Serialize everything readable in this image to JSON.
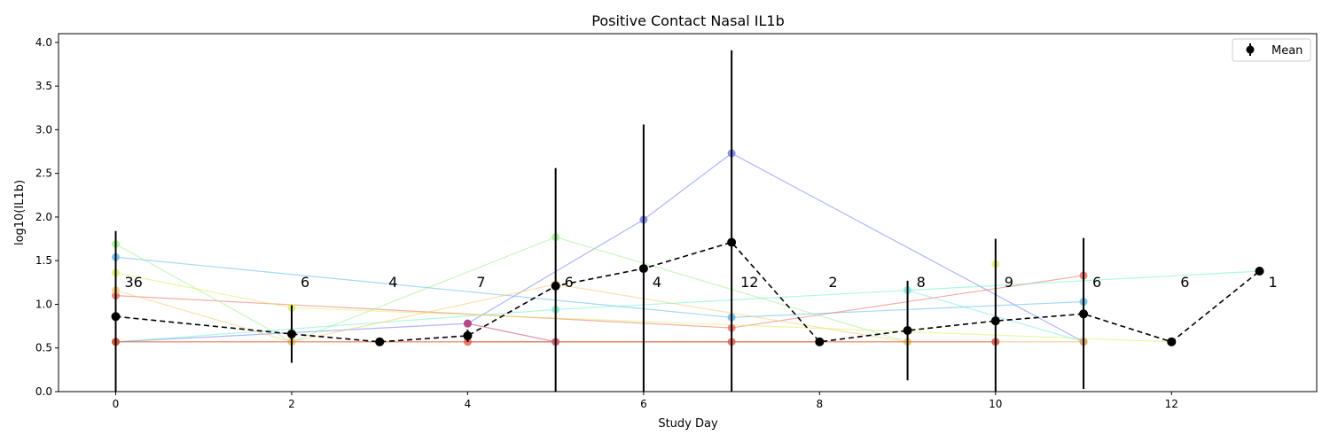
{
  "chart_data": {
    "type": "line",
    "title": "Positive Contact Nasal IL1b",
    "xlabel": "Study Day",
    "ylabel": "log10(IL1b)",
    "xlim": [
      -0.65,
      13.65
    ],
    "ylim": [
      0.0,
      4.1
    ],
    "xticks": [
      0,
      2,
      4,
      6,
      8,
      10,
      12
    ],
    "xtick_labels": [
      "0",
      "2",
      "4",
      "6",
      "8",
      "10",
      "12"
    ],
    "yticks": [
      0.0,
      0.5,
      1.0,
      1.5,
      2.0,
      2.5,
      3.0,
      3.5,
      4.0
    ],
    "ytick_labels": [
      "0.0",
      "0.5",
      "1.0",
      "1.5",
      "2.0",
      "2.5",
      "3.0",
      "3.5",
      "4.0"
    ],
    "grid": false,
    "legend": {
      "position": "top-right",
      "entries": [
        "Mean"
      ]
    },
    "mean_series": {
      "name": "Mean",
      "color": "#000000",
      "x": [
        0,
        2,
        3,
        4,
        5,
        6,
        7,
        8,
        9,
        10,
        11,
        12,
        13
      ],
      "y": [
        0.86,
        0.66,
        0.57,
        0.64,
        1.21,
        1.41,
        1.71,
        0.57,
        0.7,
        0.81,
        0.89,
        0.57,
        1.38
      ],
      "err_low": [
        0.0,
        0.33,
        0.57,
        0.57,
        0.0,
        0.0,
        0.0,
        0.57,
        0.13,
        0.0,
        0.03,
        0.57,
        1.38
      ],
      "err_high": [
        1.84,
        0.99,
        0.57,
        0.71,
        2.56,
        3.06,
        3.91,
        0.57,
        1.27,
        1.75,
        1.76,
        0.57,
        1.38
      ]
    },
    "counts": [
      {
        "x": 0,
        "label": "36"
      },
      {
        "x": 2,
        "label": "6"
      },
      {
        "x": 3,
        "label": "4"
      },
      {
        "x": 4,
        "label": "7"
      },
      {
        "x": 5,
        "label": "6"
      },
      {
        "x": 6,
        "label": "4"
      },
      {
        "x": 7,
        "label": "12"
      },
      {
        "x": 8,
        "label": "2"
      },
      {
        "x": 9,
        "label": "8"
      },
      {
        "x": 10,
        "label": "9"
      },
      {
        "x": 11,
        "label": "6"
      },
      {
        "x": 12,
        "label": "6"
      },
      {
        "x": 13,
        "label": "1"
      }
    ],
    "count_label_y": 1.26,
    "subjects": [
      {
        "color": "#6b7bf0",
        "x": [
          0,
          4,
          6,
          7,
          11
        ],
        "y": [
          0.57,
          0.78,
          1.97,
          2.73,
          0.57
        ]
      },
      {
        "color": "#5db8f0",
        "x": [
          0,
          7,
          11
        ],
        "y": [
          1.54,
          0.85,
          1.03
        ]
      },
      {
        "color": "#eb6a5c",
        "x": [
          0,
          7,
          11
        ],
        "y": [
          1.1,
          0.73,
          1.33
        ]
      },
      {
        "color": "#6ef0c8",
        "x": [
          0,
          5,
          13
        ],
        "y": [
          0.57,
          0.94,
          1.38
        ]
      },
      {
        "color": "#9cf08c",
        "x": [
          0,
          2,
          5,
          9
        ],
        "y": [
          1.69,
          0.57,
          1.77,
          0.57
        ]
      },
      {
        "color": "#f5c86e",
        "x": [
          0,
          2,
          5,
          9
        ],
        "y": [
          1.16,
          0.57,
          1.23,
          0.57
        ]
      },
      {
        "color": "#d8f05e",
        "x": [
          0,
          2,
          12
        ],
        "y": [
          1.36,
          0.96,
          0.57
        ]
      },
      {
        "color": "#c4366e",
        "x": [
          4,
          5
        ],
        "y": [
          0.78,
          0.57
        ]
      },
      {
        "color": "#78e8e0",
        "x": [
          9,
          11
        ],
        "y": [
          1.16,
          0.57
        ]
      },
      {
        "color": "#e0f06a",
        "x": [
          10
        ],
        "y": [
          1.46
        ]
      },
      {
        "color": "#f5a04e",
        "x": [
          0,
          11
        ],
        "y": [
          0.57,
          0.57
        ]
      },
      {
        "color": "#d4432e",
        "x": [
          0,
          10
        ],
        "y": [
          0.57,
          0.57
        ]
      },
      {
        "color": "#e05a4a",
        "x": [
          4,
          7,
          8
        ],
        "y": [
          0.57,
          0.57,
          0.57
        ]
      }
    ]
  }
}
